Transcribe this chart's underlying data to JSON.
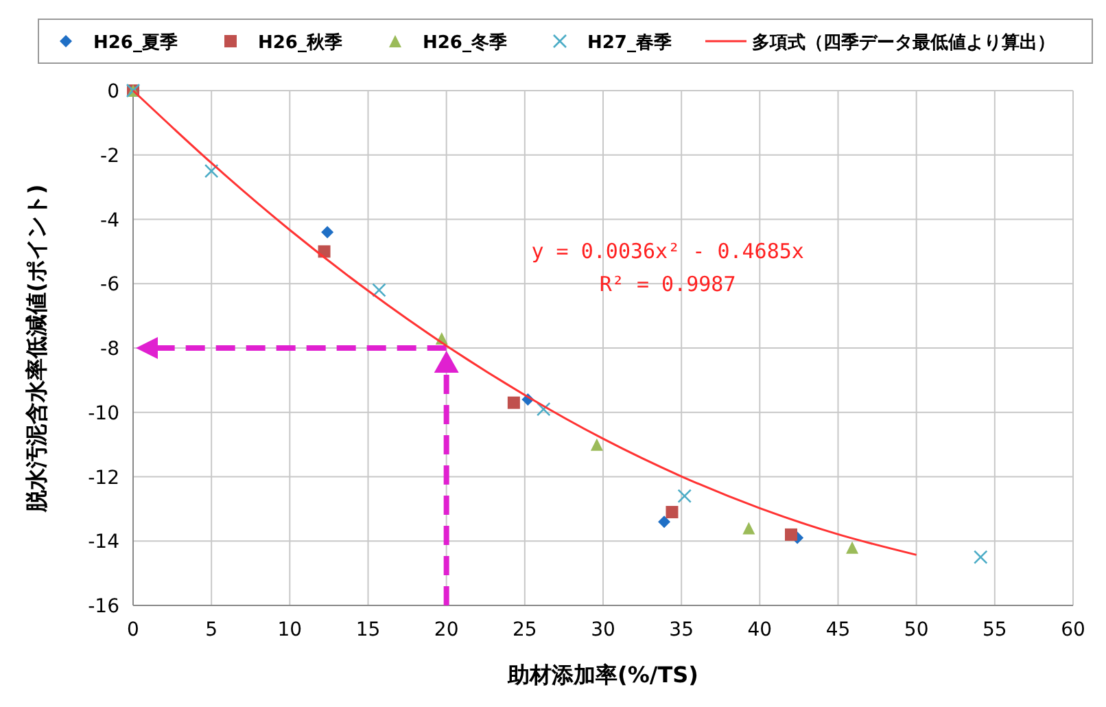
{
  "chart_data": {
    "type": "scatter",
    "xlabel": "助材添加率(%/TS)",
    "ylabel": "脱水汚泥含水率低減値(ポイント)",
    "annotations": [
      "y = 0.0036x² - 0.4685x",
      "R² = 0.9987"
    ],
    "xlim": [
      0,
      60
    ],
    "xticks": [
      0,
      5,
      10,
      15,
      20,
      25,
      30,
      35,
      40,
      45,
      50,
      55,
      60
    ],
    "ylim": [
      -16,
      0
    ],
    "yticks": [
      0,
      -2,
      -4,
      -6,
      -8,
      -10,
      -12,
      -14,
      -16
    ],
    "grid": true,
    "legend": "top",
    "ref_lines": [
      {
        "axis": "x",
        "value": 20,
        "color": "#e020d0",
        "line_style": "dashed"
      },
      {
        "axis": "y",
        "value": -8,
        "color": "#e020d0",
        "line_style": "dashed"
      }
    ],
    "series": [
      {
        "name": "H26_夏季",
        "color": "#1f6fc5",
        "marker": "diamond",
        "x": [
          12.4,
          25.2,
          33.9,
          42.4
        ],
        "values": [
          -4.4,
          -9.6,
          -13.4,
          -13.9
        ]
      },
      {
        "name": "H26_秋季",
        "color": "#c0504d",
        "marker": "square",
        "x": [
          0,
          12.2,
          24.3,
          34.4,
          42.0
        ],
        "values": [
          0,
          -5.0,
          -9.7,
          -13.1,
          -13.8
        ]
      },
      {
        "name": "H26_冬季",
        "color": "#9bbb59",
        "marker": "triangle",
        "x": [
          0,
          19.7,
          29.6,
          39.3,
          45.9
        ],
        "values": [
          0,
          -7.7,
          -11.0,
          -13.6,
          -14.2
        ]
      },
      {
        "name": "H27_春季",
        "color": "#4bacc6",
        "marker": "cross",
        "x": [
          0,
          5.0,
          15.7,
          26.2,
          35.2,
          54.1
        ],
        "values": [
          0,
          -2.5,
          -6.2,
          -9.9,
          -12.6,
          -14.5
        ]
      },
      {
        "name": "多項式（四季データ最低値より算出）",
        "type": "line",
        "color": "#ff3333",
        "marker": "none",
        "line_style": "solid",
        "x": [
          0,
          5,
          10,
          15,
          20,
          25,
          30,
          35,
          40,
          45,
          50
        ],
        "values": [
          0,
          -2.25,
          -4.33,
          -6.22,
          -7.93,
          -9.46,
          -10.82,
          -11.99,
          -12.98,
          -13.79,
          -14.43
        ]
      }
    ]
  }
}
